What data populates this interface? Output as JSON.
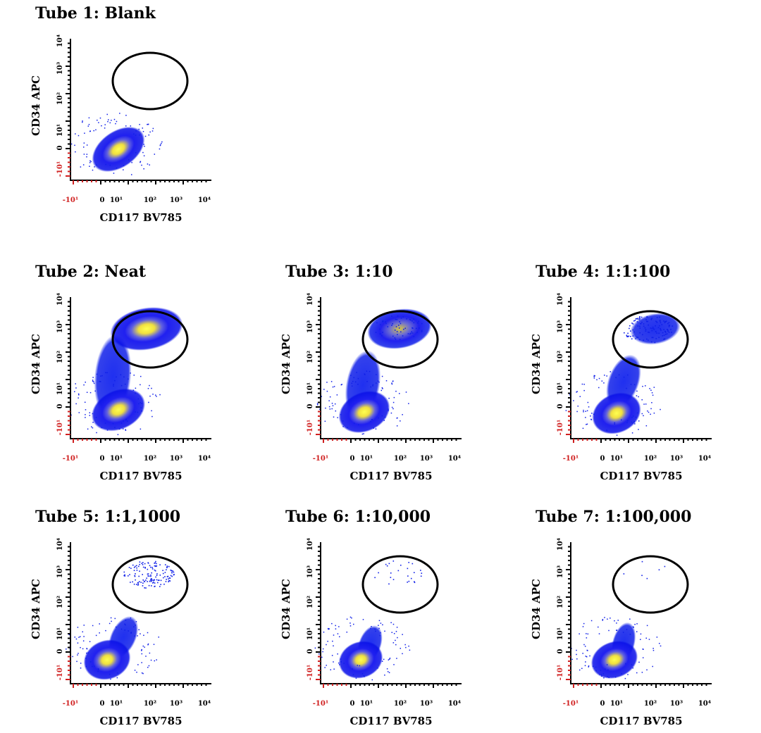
{
  "panels": [
    {
      "title": "Tube 1: Blank",
      "y_label": "CD34 APC",
      "x_label": "CD117 BV785"
    },
    {
      "title": "Tube 2: Neat",
      "y_label": "CD34 APC",
      "x_label": "CD117 BV785"
    },
    {
      "title": "Tube 3: 1:10",
      "y_label": "CD34 APC",
      "x_label": "CD117 BV785"
    },
    {
      "title": "Tube 4: 1:1:100",
      "y_label": "CD34 APC",
      "x_label": "CD117 BV785"
    },
    {
      "title": "Tube 5: 1:1,1000",
      "y_label": "CD34 APC",
      "x_label": "CD117 BV785"
    },
    {
      "title": "Tube 6: 1:10,000",
      "y_label": "CD34 APC",
      "x_label": "CD117 BV785"
    },
    {
      "title": "Tube 7: 1:100,000",
      "y_label": "CD34 APC",
      "x_label": "CD117 BV785"
    }
  ],
  "x_tick_labels": [
    "-10¹",
    "0",
    "10¹",
    "10²",
    "10³",
    "10⁴"
  ],
  "y_tick_labels": [
    "-10¹",
    "0",
    "10¹",
    "10²",
    "10³",
    "10⁴"
  ]
}
